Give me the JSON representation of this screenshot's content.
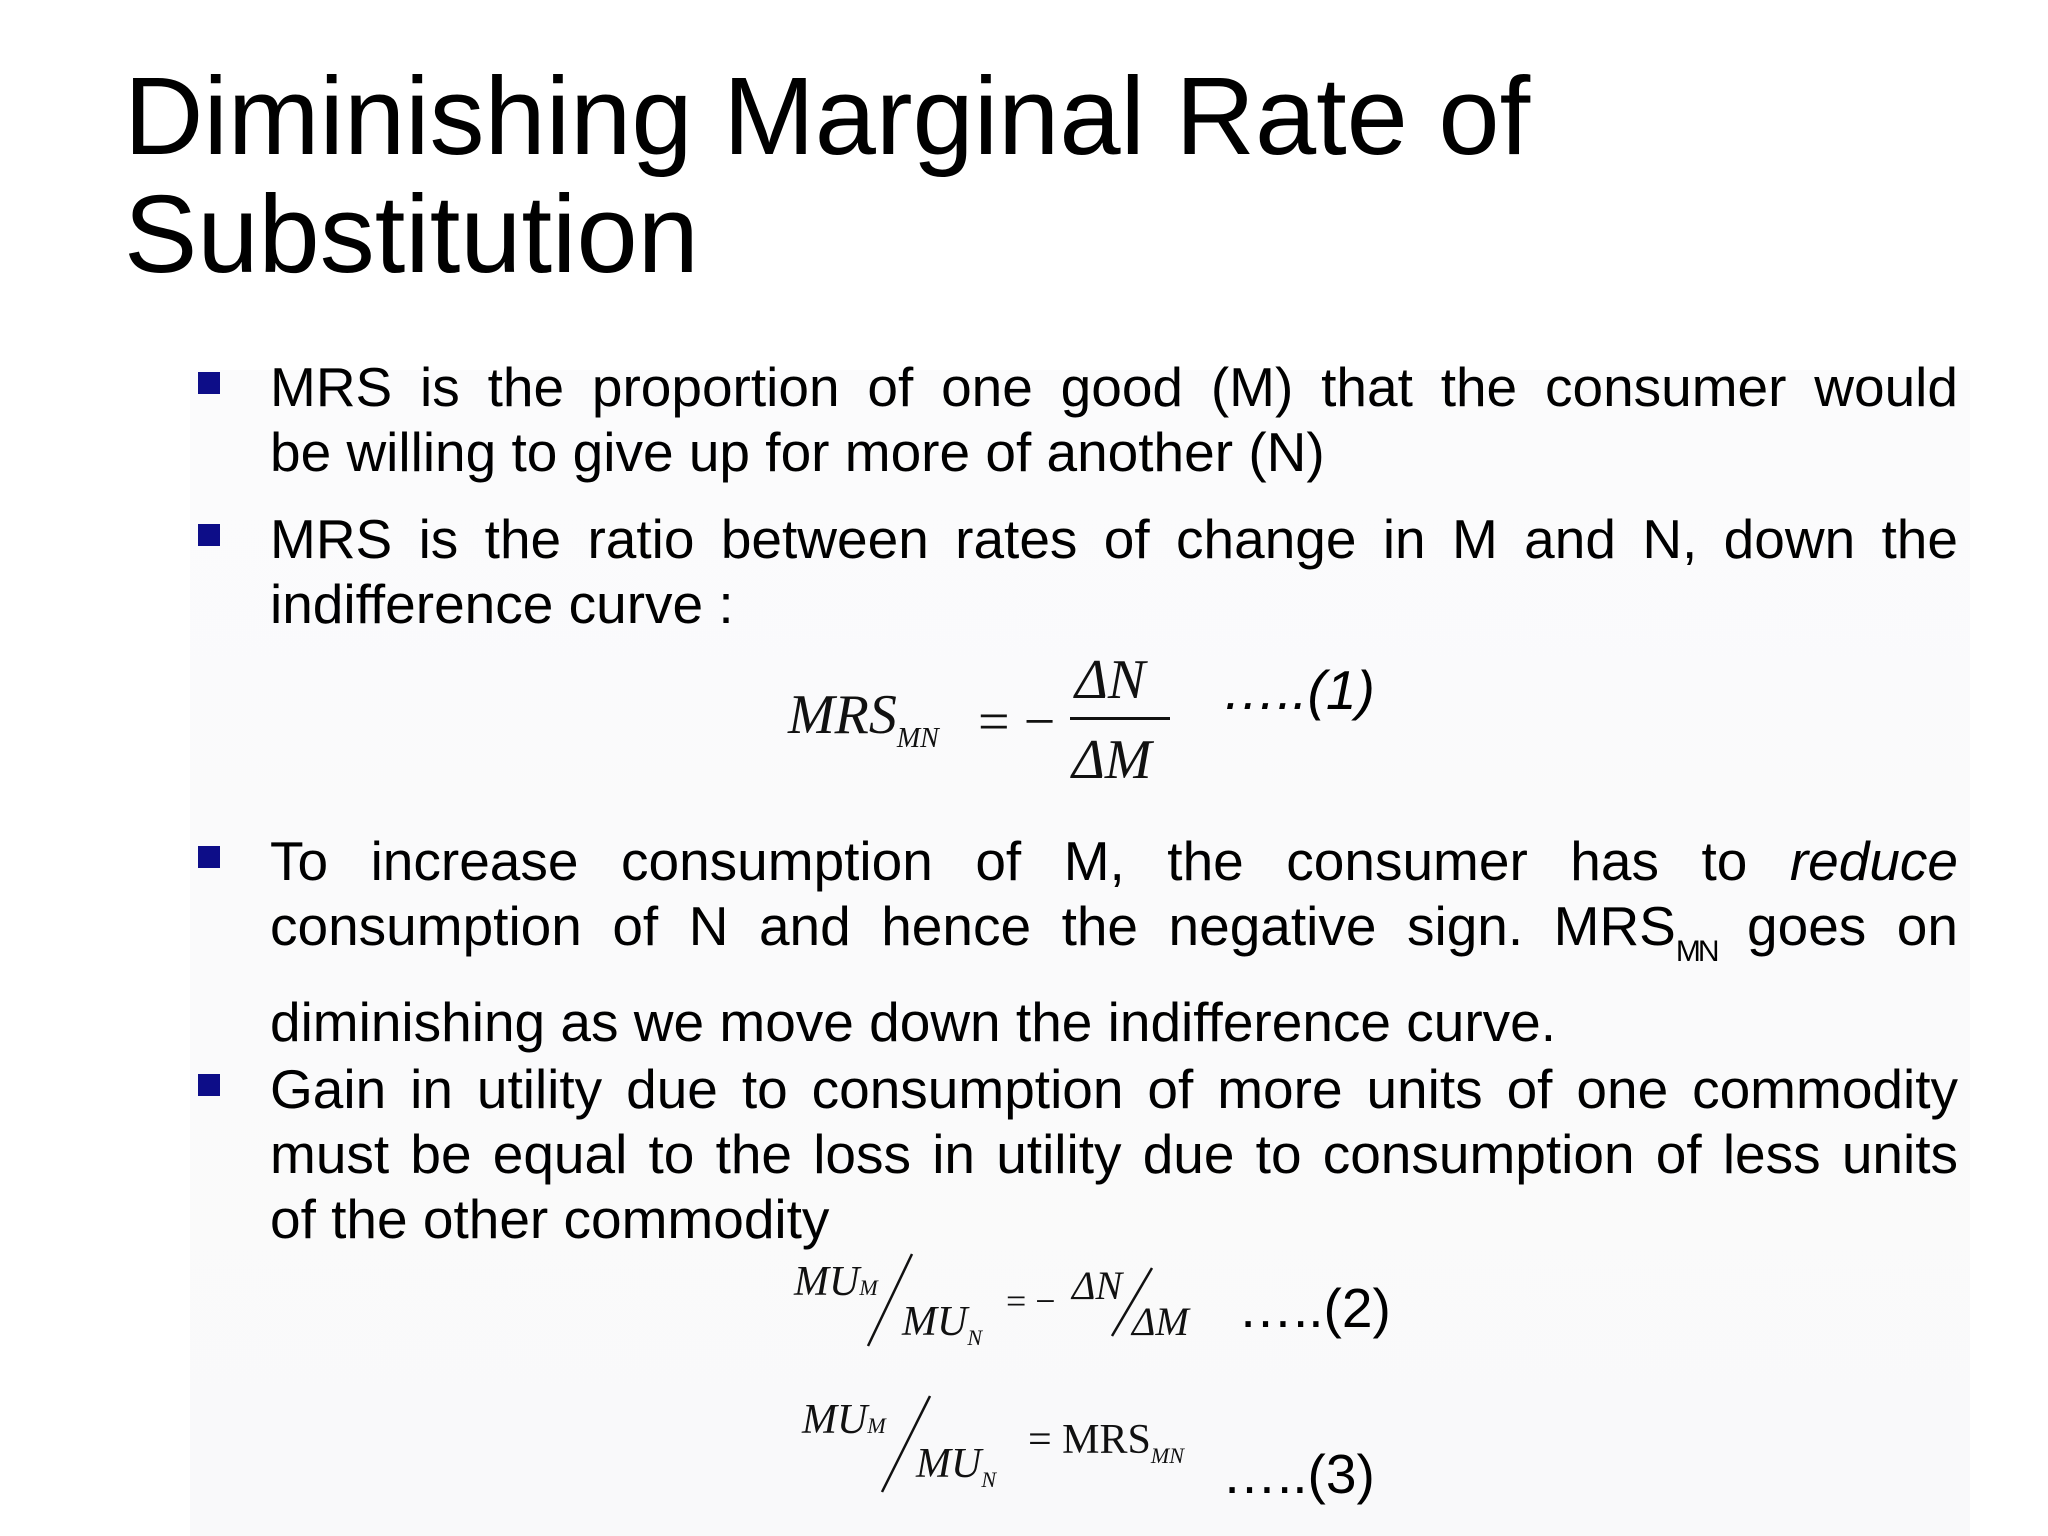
{
  "title": {
    "line1": "Diminishing Marginal Rate of",
    "line2": "Substitution"
  },
  "bullets": {
    "b1": {
      "l1": "MRS is the proportion of one good (M) that the consumer would",
      "l2": "be willing to give up for more of another (N)"
    },
    "b2": {
      "l1": "MRS is the ratio between rates of change in M and N, down the",
      "l2": "indifference curve :"
    },
    "b3": {
      "l1a": "To increase consumption of M, the consumer has to ",
      "l1b": "reduce",
      "l2a": "consumption of N and hence the negative sign. MRS",
      "l2sub": "MN",
      "l2b": " goes on",
      "l3": "diminishing as we move down the indifference curve."
    },
    "b4": {
      "l1": "Gain in utility due to consumption of more units of one commodity",
      "l2": "must be equal to the loss in utility due to consumption of less units",
      "l3": "of the other commodity"
    }
  },
  "eq1": {
    "lhs": "MRS",
    "lhs_sub": "MN",
    "equals": "= −",
    "numerator": "ΔN",
    "denominator": "ΔM",
    "label": "…..(1)"
  },
  "eq2": {
    "mu_m": "MU",
    "mu_m_sub": "M",
    "mu_n": "MU",
    "mu_n_sub": "N",
    "equals": "= −",
    "dn": "ΔN",
    "dm": "ΔM",
    "label": "…..(2)"
  },
  "eq3": {
    "mu_m": "MU",
    "mu_m_sub": "M",
    "mu_n": "MU",
    "mu_n_sub": "N",
    "rhs": "= MRS",
    "rhs_sub": "MN",
    "label": "…..(3)"
  },
  "colors": {
    "bullet_marker": "#0d0d88",
    "text": "#000000"
  }
}
